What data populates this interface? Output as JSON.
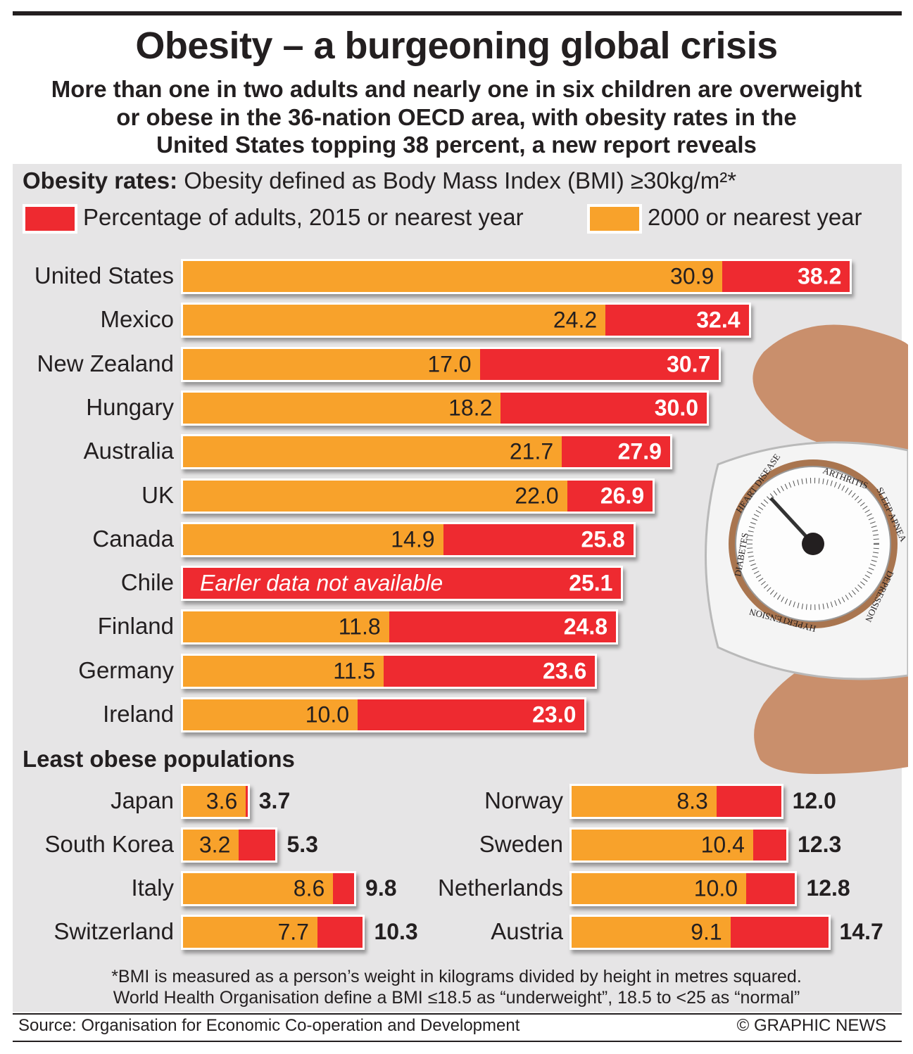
{
  "title": "Obesity – a burgeoning global crisis",
  "subtitle": [
    "More than one in two adults and nearly one in six children are overweight",
    "or obese in the 36-nation OECD area, with obesity rates in the",
    "United States topping 38 percent, a new report reveals"
  ],
  "section_heading_bold": "Obesity rates:",
  "section_heading_text": "Obesity defined as Body Mass Index (BMI) ≥30kg/m²*",
  "legend": [
    {
      "label": "Percentage of adults, 2015 or nearest year",
      "color": "#ee2a30"
    },
    {
      "label": "2000 or nearest year",
      "color": "#f8a22b"
    }
  ],
  "chart_data": [
    {
      "type": "bar",
      "orientation": "horizontal",
      "categories": [
        "United States",
        "Mexico",
        "New Zealand",
        "Hungary",
        "Australia",
        "UK",
        "Canada",
        "Chile",
        "Finland",
        "Germany",
        "Ireland"
      ],
      "series": [
        {
          "name": "Percentage of adults, 2015 or nearest year",
          "values": [
            38.2,
            32.4,
            30.7,
            30.0,
            27.9,
            26.9,
            25.8,
            25.1,
            24.8,
            23.6,
            23.0
          ]
        },
        {
          "name": "2000 or nearest year",
          "values": [
            30.9,
            24.2,
            17.0,
            18.2,
            21.7,
            22.0,
            14.9,
            null,
            11.8,
            11.5,
            10.0
          ]
        }
      ],
      "annotations": [
        {
          "category": "Chile",
          "text": "Earler data not available"
        }
      ],
      "xlim": [
        0,
        40
      ],
      "grid": false
    },
    {
      "type": "bar",
      "orientation": "horizontal",
      "title": "Least obese populations",
      "columns": [
        {
          "categories": [
            "Japan",
            "South Korea",
            "Italy",
            "Switzerland"
          ],
          "series": [
            {
              "name": "Percentage of adults, 2015 or nearest year",
              "values": [
                3.7,
                5.3,
                9.8,
                10.3
              ]
            },
            {
              "name": "2000 or nearest year",
              "values": [
                3.6,
                3.2,
                8.6,
                7.7
              ]
            }
          ]
        },
        {
          "categories": [
            "Norway",
            "Sweden",
            "Netherlands",
            "Austria"
          ],
          "series": [
            {
              "name": "Percentage of adults, 2015 or nearest year",
              "values": [
                12.0,
                12.3,
                12.8,
                14.7
              ]
            },
            {
              "name": "2000 or nearest year",
              "values": [
                8.3,
                10.4,
                10.0,
                9.1
              ]
            }
          ]
        }
      ],
      "xlim": [
        0,
        40
      ],
      "grid": false
    }
  ],
  "least_heading": "Least obese populations",
  "scale_labels": [
    "HEART DISEASE",
    "ARTHRITIS",
    "SLEEP APNEA",
    "DEPRESSION",
    "HYPERTENSION",
    "DIABETES"
  ],
  "footnote": [
    "*BMI is measured as a person’s weight in kilograms divided by height in metres squared.",
    "World Health Organisation define a BMI ≤18.5 as “underweight”, 18.5 to <25 as “normal”"
  ],
  "source": "Source: Organisation for Economic Co-operation and Development",
  "credit": "© GRAPHIC NEWS",
  "colors": {
    "new": "#ee2a30",
    "old": "#f8a22b",
    "panel": "#e6e5e6"
  }
}
